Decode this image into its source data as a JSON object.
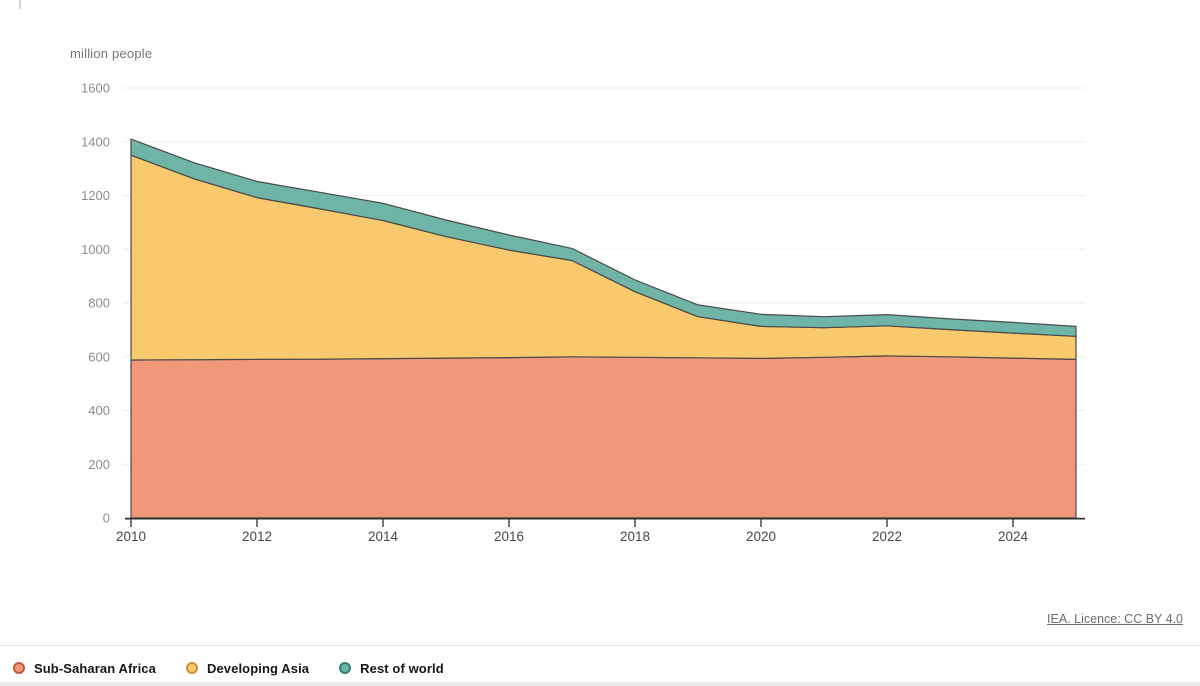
{
  "page": {
    "unit_label": "million people",
    "source_link": "IEA. Licence: CC BY 4.0"
  },
  "chart_data": {
    "type": "area",
    "stacked": true,
    "title": "",
    "ylabel": "million people",
    "xlabel": "",
    "x": [
      2010,
      2011,
      2012,
      2013,
      2014,
      2015,
      2016,
      2017,
      2018,
      2019,
      2020,
      2021,
      2022,
      2023,
      2024,
      2025
    ],
    "series": [
      {
        "name": "Sub-Saharan Africa",
        "fill": "#F2987A",
        "edge": "#C4593B",
        "values": [
          588,
          589,
          590,
          591,
          593,
          595,
          597,
          600,
          598,
          596,
          594,
          598,
          603,
          600,
          595,
          590
        ]
      },
      {
        "name": "Developing Asia",
        "fill": "#F8C96D",
        "edge": "#C9912F",
        "values": [
          762,
          673,
          602,
          559,
          514,
          452,
          400,
          358,
          244,
          153,
          119,
          110,
          112,
          101,
          93,
          86
        ]
      },
      {
        "name": "Rest of world",
        "fill": "#6EB4A7",
        "edge": "#2F8273",
        "values": [
          60,
          60,
          60,
          62,
          64,
          62,
          56,
          45,
          44,
          44,
          45,
          41,
          42,
          40,
          40,
          37
        ]
      }
    ],
    "stack_totals": [
      1410,
      1322,
      1252,
      1212,
      1171,
      1109,
      1053,
      1003,
      886,
      793,
      758,
      749,
      757,
      741,
      728,
      713
    ],
    "ylim": [
      0,
      1600
    ],
    "yticks": [
      0,
      200,
      400,
      600,
      800,
      1000,
      1200,
      1400,
      1600
    ],
    "xticks": [
      2010,
      2012,
      2014,
      2016,
      2018,
      2020,
      2022,
      2024
    ],
    "grid": "horizontal",
    "gridline_color": "#ededed",
    "boundary_stroke": "#4A4A4A",
    "axis_color": "#2F2F2F",
    "legend_position": "bottom-left",
    "source": "IEA. Licence: CC BY 4.0"
  }
}
